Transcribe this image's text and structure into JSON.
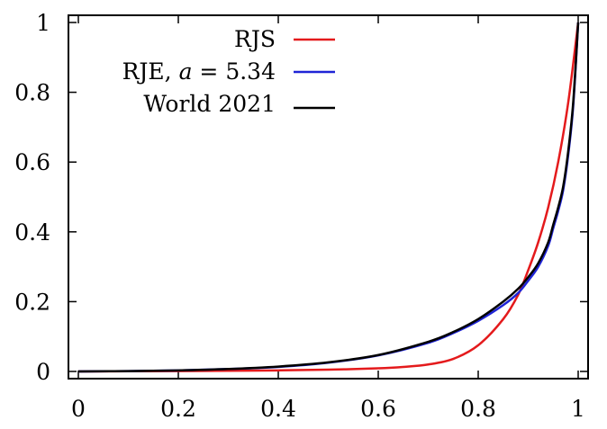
{
  "chart_data": {
    "type": "line",
    "title": "",
    "xlabel": "",
    "ylabel": "",
    "xlim": [
      0,
      1
    ],
    "ylim": [
      0,
      1
    ],
    "x_ticks": [
      "0",
      "0.2",
      "0.4",
      "0.6",
      "0.8",
      "1"
    ],
    "y_ticks": [
      "0",
      "0.2",
      "0.4",
      "0.6",
      "0.8",
      "1"
    ],
    "grid": false,
    "legend_position": "top-center",
    "series": [
      {
        "name": "RJS",
        "color": "#e41a1c",
        "x": [
          0,
          0.1,
          0.2,
          0.3,
          0.4,
          0.5,
          0.6,
          0.65,
          0.7,
          0.75,
          0.8,
          0.85,
          0.88,
          0.9,
          0.92,
          0.94,
          0.96,
          0.98,
          1
        ],
        "y": [
          0,
          0.0005,
          0.001,
          0.002,
          0.003,
          0.005,
          0.009,
          0.013,
          0.02,
          0.036,
          0.075,
          0.15,
          0.22,
          0.29,
          0.37,
          0.47,
          0.6,
          0.77,
          1
        ]
      },
      {
        "name": "RJE, a = 5.34",
        "color": "#1f24d6",
        "x": [
          0,
          0.1,
          0.2,
          0.3,
          0.4,
          0.5,
          0.6,
          0.7,
          0.75,
          0.8,
          0.85,
          0.88,
          0.9,
          0.92,
          0.94,
          0.95,
          0.96,
          0.97,
          0.98,
          0.99,
          1
        ],
        "y": [
          0,
          0.001,
          0.003,
          0.007,
          0.013,
          0.025,
          0.046,
          0.082,
          0.11,
          0.145,
          0.19,
          0.225,
          0.26,
          0.3,
          0.36,
          0.41,
          0.46,
          0.52,
          0.62,
          0.76,
          1
        ]
      },
      {
        "name": "World 2021",
        "color": "#000000",
        "x": [
          0,
          0.1,
          0.2,
          0.3,
          0.4,
          0.5,
          0.6,
          0.7,
          0.75,
          0.8,
          0.85,
          0.88,
          0.9,
          0.92,
          0.94,
          0.95,
          0.96,
          0.97,
          0.98,
          0.99,
          1
        ],
        "y": [
          0,
          0.001,
          0.003,
          0.007,
          0.014,
          0.026,
          0.047,
          0.085,
          0.113,
          0.15,
          0.2,
          0.237,
          0.27,
          0.31,
          0.37,
          0.42,
          0.47,
          0.53,
          0.63,
          0.77,
          1
        ]
      }
    ],
    "legend": [
      {
        "label": "RJS",
        "color": "#e41a1c"
      },
      {
        "label_prefix": "RJE, ",
        "label_var": "a",
        "label_suffix": " = 5.34",
        "color": "#1f24d6"
      },
      {
        "label": "World 2021",
        "color": "#000000"
      }
    ]
  }
}
